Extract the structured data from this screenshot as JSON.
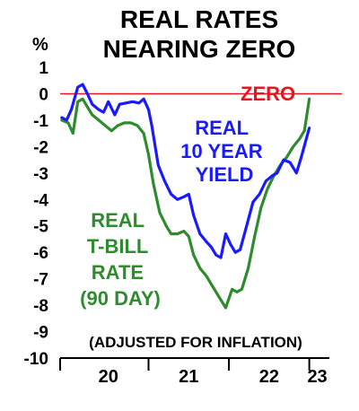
{
  "chart_data": {
    "type": "line",
    "title_lines": [
      "REAL RATES",
      "NEARING ZERO"
    ],
    "y_unit": "%",
    "ylim": [
      -10,
      1
    ],
    "y_ticks": [
      1,
      0,
      -1,
      -2,
      -3,
      -4,
      -5,
      -6,
      -7,
      -8,
      -9,
      -10
    ],
    "y_tick_labels": [
      "1",
      "0",
      "-1",
      "-2",
      "-3",
      "-4",
      "-5",
      "-6",
      "-7",
      "-8",
      "-9",
      "-10"
    ],
    "x_tick_labels": [
      "20",
      "21",
      "22",
      "23"
    ],
    "x_label_positions": [
      2020.5,
      2021.5,
      2022.5,
      2023.1
    ],
    "x_separators": [
      2021,
      2022,
      2023
    ],
    "xlim": [
      2019.9,
      2023.25
    ],
    "zero_line": {
      "value": 0,
      "label": "ZERO",
      "color": "#e8141e"
    },
    "annotation": "(ADJUSTED FOR INFLATION)",
    "grid": false,
    "series": [
      {
        "name": "REAL 10 YEAR YIELD",
        "label_lines": [
          "REAL",
          "10 YEAR",
          "YIELD"
        ],
        "color": "#1a1aff",
        "points": [
          [
            2019.92,
            -0.9
          ],
          [
            2019.98,
            -1.0
          ],
          [
            2020.04,
            -0.6
          ],
          [
            2020.12,
            0.25
          ],
          [
            2020.18,
            0.35
          ],
          [
            2020.24,
            0.0
          ],
          [
            2020.3,
            -0.4
          ],
          [
            2020.38,
            -0.6
          ],
          [
            2020.44,
            -0.7
          ],
          [
            2020.5,
            -0.3
          ],
          [
            2020.58,
            -0.8
          ],
          [
            2020.64,
            -0.4
          ],
          [
            2020.72,
            -0.35
          ],
          [
            2020.8,
            -0.3
          ],
          [
            2020.88,
            -0.35
          ],
          [
            2020.94,
            -0.2
          ],
          [
            2021.0,
            -0.6
          ],
          [
            2021.04,
            -1.2
          ],
          [
            2021.12,
            -2.7
          ],
          [
            2021.2,
            -3.3
          ],
          [
            2021.28,
            -3.8
          ],
          [
            2021.36,
            -4.0
          ],
          [
            2021.44,
            -3.9
          ],
          [
            2021.5,
            -3.8
          ],
          [
            2021.56,
            -4.6
          ],
          [
            2021.64,
            -5.3
          ],
          [
            2021.72,
            -5.6
          ],
          [
            2021.78,
            -5.8
          ],
          [
            2021.84,
            -6.1
          ],
          [
            2021.9,
            -6.2
          ],
          [
            2021.96,
            -5.3
          ],
          [
            2022.02,
            -5.7
          ],
          [
            2022.08,
            -6.0
          ],
          [
            2022.14,
            -5.9
          ],
          [
            2022.22,
            -5.0
          ],
          [
            2022.3,
            -4.1
          ],
          [
            2022.38,
            -3.8
          ],
          [
            2022.46,
            -3.3
          ],
          [
            2022.54,
            -3.1
          ],
          [
            2022.6,
            -3.0
          ],
          [
            2022.68,
            -2.5
          ],
          [
            2022.76,
            -2.6
          ],
          [
            2022.84,
            -3.0
          ],
          [
            2022.9,
            -2.4
          ],
          [
            2023.0,
            -1.3
          ]
        ]
      },
      {
        "name": "REAL T-BILL RATE (90 DAY)",
        "label_lines": [
          "REAL",
          "T-BILL",
          "RATE",
          "(90 DAY)"
        ],
        "color": "#2e8b2e",
        "points": [
          [
            2019.92,
            -1.0
          ],
          [
            2020.0,
            -1.1
          ],
          [
            2020.06,
            -1.5
          ],
          [
            2020.12,
            -0.3
          ],
          [
            2020.18,
            -0.2
          ],
          [
            2020.24,
            -0.5
          ],
          [
            2020.3,
            -0.8
          ],
          [
            2020.38,
            -1.0
          ],
          [
            2020.46,
            -1.2
          ],
          [
            2020.54,
            -1.4
          ],
          [
            2020.62,
            -1.2
          ],
          [
            2020.7,
            -1.1
          ],
          [
            2020.78,
            -1.1
          ],
          [
            2020.86,
            -1.2
          ],
          [
            2020.94,
            -1.5
          ],
          [
            2021.0,
            -2.3
          ],
          [
            2021.06,
            -3.4
          ],
          [
            2021.14,
            -4.5
          ],
          [
            2021.22,
            -5.0
          ],
          [
            2021.28,
            -5.3
          ],
          [
            2021.36,
            -5.3
          ],
          [
            2021.44,
            -5.2
          ],
          [
            2021.5,
            -5.4
          ],
          [
            2021.56,
            -6.1
          ],
          [
            2021.64,
            -6.6
          ],
          [
            2021.72,
            -6.9
          ],
          [
            2021.8,
            -7.3
          ],
          [
            2021.88,
            -7.7
          ],
          [
            2021.96,
            -8.1
          ],
          [
            2022.04,
            -7.4
          ],
          [
            2022.1,
            -7.5
          ],
          [
            2022.16,
            -7.4
          ],
          [
            2022.24,
            -6.6
          ],
          [
            2022.32,
            -5.4
          ],
          [
            2022.4,
            -4.3
          ],
          [
            2022.48,
            -3.6
          ],
          [
            2022.56,
            -3.1
          ],
          [
            2022.64,
            -2.7
          ],
          [
            2022.72,
            -2.4
          ],
          [
            2022.8,
            -2.0
          ],
          [
            2022.88,
            -1.7
          ],
          [
            2022.94,
            -1.4
          ],
          [
            2023.0,
            -0.2
          ]
        ]
      }
    ]
  }
}
